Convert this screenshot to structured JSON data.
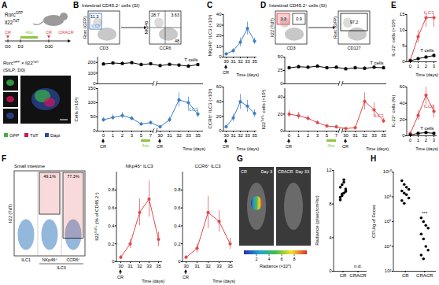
{
  "figure": {
    "A": {
      "letter": "A",
      "strains": [
        [
          "Rorc",
          "GFP"
        ],
        [
          "Il22",
          "TdT"
        ]
      ],
      "timeline": {
        "days": [
          "D0",
          "D3",
          "D30"
        ],
        "treatments": [
          {
            "label": "CR",
            "color": "#e0474c"
          },
          {
            "label": "Abx",
            "color": "#8dc63f"
          },
          {
            "label": "CR",
            "color": "#e0474c"
          }
        ],
        "end": "CRACR"
      },
      "image": {
        "title": [
          "Rorc",
          "GFP",
          " × Il22",
          "TdT"
        ],
        "subtitle": "(SILP; D0)",
        "channels": [
          {
            "name": "GFP",
            "color": "#39b54a"
          },
          {
            "name": "TdT",
            "color": "#d4145a"
          },
          {
            "name": "Dapi",
            "color": "#2b4a9c"
          }
        ]
      }
    },
    "B": {
      "letter": "B",
      "title": [
        "Intestinal CD45.2",
        "+",
        " cells (SI)"
      ],
      "flow": [
        {
          "ylabel": "Rorc (GFP)",
          "xlabel": "CD3",
          "gates": [
            11.3
          ],
          "gate_label": "ILC3",
          "color": "#3b7dbf"
        },
        {
          "ylabel": "NKp46",
          "xlabel": "CCR6",
          "gates": [
            28.7,
            3.63,
            48
          ]
        }
      ]
    },
    "C": {
      "letter": "C"
    },
    "D": {
      "letter": "D",
      "title": [
        "Intestinal CD45.2",
        "+",
        " cells (SI)"
      ],
      "flow": [
        {
          "ylabel": "Il22 (TdT)",
          "xlabel": "CD3",
          "gates": [
            3.3,
            0.9
          ],
          "color": "#e0474c"
        },
        {
          "ylabel": "Rorc (GFP)",
          "xlabel": "CD127",
          "gates": [
            97.2
          ]
        }
      ]
    },
    "E": {
      "letter": "E"
    },
    "F": {
      "letter": "F",
      "flow": {
        "title": "Small intestine",
        "ylabel": "Il22 (TdT)",
        "columns": [
          "ILC1",
          [
            "NKp46",
            "+"
          ],
          [
            "CCR6",
            "+"
          ]
        ],
        "gated": [
          {
            "value": 49.1,
            "label": "49.1%"
          },
          {
            "value": 77.3,
            "label": "77.3%"
          }
        ],
        "group": "ILC3",
        "color": "#e0474c"
      }
    },
    "G": {
      "letter": "G",
      "images": [
        {
          "label": "CR",
          "day": "Day 3"
        },
        {
          "label": "CRACR",
          "day": "Day 33"
        }
      ],
      "colorbar": {
        "label": "Radiance (×10⁶)",
        "range": [
          0,
          10
        ],
        "ticks": [
          2,
          4,
          6,
          8
        ]
      }
    },
    "H": {
      "letter": "H"
    }
  },
  "chart_data": [
    {
      "panel": "B",
      "type": "line",
      "tick_labels": "y",
      "categories": [
        "0",
        "1",
        "2",
        "3",
        "5",
        "7",
        "30",
        "31",
        "32",
        "33",
        "35"
      ],
      "series": [
        {
          "name": "T cells",
          "color": "#000000",
          "marker": "square",
          "values": [
            185,
            195,
            190,
            198,
            180,
            188,
            170,
            182,
            175,
            165,
            180
          ],
          "errors": [
            15,
            12,
            15,
            10,
            14,
            12,
            15,
            12,
            14,
            15,
            12
          ]
        }
      ],
      "ylim": [
        0,
        250
      ],
      "yticks": [
        0,
        100,
        200
      ]
    },
    {
      "panel": "B",
      "type": "line",
      "ylabel": "Cells (×10³)",
      "xlabel": "Time (days)",
      "categories": [
        "0",
        "1",
        "2",
        "3",
        "5",
        "7",
        "30",
        "31",
        "32",
        "33",
        "35"
      ],
      "series": [
        {
          "name": "ILC3",
          "color": "#3b7dbf",
          "marker": "circle",
          "values": [
            40,
            48,
            55,
            45,
            25,
            30,
            15,
            40,
            110,
            100,
            60
          ],
          "errors": [
            8,
            10,
            10,
            8,
            6,
            6,
            5,
            10,
            25,
            20,
            12
          ]
        }
      ],
      "ylim": [
        0,
        150
      ],
      "yticks": [
        0,
        50,
        100,
        150
      ],
      "treatments": [
        {
          "label": "CR",
          "at": "0",
          "color": "#000000"
        },
        {
          "label": "Abx",
          "from": "5",
          "to": "7",
          "color": "#8dc63f"
        },
        {
          "label": "CR",
          "at": "30",
          "color": "#000000"
        }
      ]
    },
    {
      "panel": "C",
      "type": "line",
      "ylabel": [
        "NKp46",
        "+",
        " ILC3 (×10³)"
      ],
      "xlabel": "Time (days)",
      "categories": [
        "30",
        "31",
        "32",
        "33",
        "35"
      ],
      "series": [
        {
          "color": "#3b7dbf",
          "marker": "circle",
          "values": [
            3,
            6,
            14,
            27,
            15
          ],
          "errors": [
            1,
            2,
            4,
            6,
            3
          ]
        }
      ],
      "ylim": [
        0,
        40
      ],
      "yticks": [
        0,
        10,
        20,
        30,
        40
      ],
      "treatments": [
        {
          "label": "CR",
          "at": "30",
          "color": "#000000"
        }
      ]
    },
    {
      "panel": "C",
      "type": "line",
      "ylabel": [
        "CCR6",
        "+",
        " ILC3 (×10³)"
      ],
      "xlabel": "Time (days)",
      "categories": [
        "30",
        "31",
        "32",
        "33",
        "35"
      ],
      "series": [
        {
          "color": "#3b7dbf",
          "marker": "circle",
          "values": [
            6,
            18,
            40,
            34,
            24
          ],
          "errors": [
            2,
            5,
            10,
            8,
            5
          ]
        }
      ],
      "ylim": [
        0,
        60
      ],
      "yticks": [
        0,
        20,
        40,
        60
      ],
      "treatments": [
        {
          "label": "CR",
          "at": "30",
          "color": "#000000"
        }
      ]
    },
    {
      "panel": "D",
      "type": "line",
      "tick_labels": "y",
      "categories": [
        "0",
        "1",
        "2",
        "3",
        "5",
        "7",
        "30",
        "31",
        "32",
        "33",
        "35"
      ],
      "series": [
        {
          "name": "T cells",
          "color": "#000000",
          "marker": "square",
          "values": [
            30,
            32,
            31,
            33,
            30,
            31,
            28,
            30,
            29,
            31,
            30
          ],
          "errors": [
            3,
            3,
            3,
            3,
            3,
            3,
            3,
            3,
            3,
            3,
            3
          ]
        }
      ],
      "ylim": [
        0,
        50
      ],
      "yticks": [
        0,
        25,
        50
      ]
    },
    {
      "panel": "D",
      "type": "line",
      "ylabel": [
        "Il22",
        "TdT+",
        " cells (×10³)"
      ],
      "xlabel": "Time (days)",
      "categories": [
        "0",
        "1",
        "2",
        "3",
        "5",
        "7",
        "30",
        "31",
        "32",
        "33",
        "35"
      ],
      "series": [
        {
          "name": "ILC3",
          "color": "#e0474c",
          "marker": "circle",
          "values": [
            20,
            18,
            15,
            10,
            6,
            5,
            3,
            4,
            35,
            25,
            12
          ],
          "errors": [
            4,
            4,
            3,
            2,
            2,
            2,
            1,
            1,
            10,
            8,
            3
          ]
        }
      ],
      "ylim": [
        0,
        50
      ],
      "yticks": [
        0,
        20,
        40
      ],
      "treatments": [
        {
          "label": "CR",
          "at": "0",
          "color": "#000000"
        },
        {
          "label": "Abx",
          "from": "5",
          "to": "7",
          "color": "#8dc63f"
        },
        {
          "label": "CR",
          "at": "30",
          "color": "#000000"
        }
      ]
    },
    {
      "panel": "E",
      "type": "line",
      "ylabel": [
        "IL-22",
        "+",
        " cells (×10³)"
      ],
      "xlabel": "Time (days)",
      "categories": [
        "0",
        "1",
        "2",
        "3"
      ],
      "series": [
        {
          "name": "ILC3",
          "color": "#e0474c",
          "marker": "circle",
          "values": [
            0.5,
            8,
            14,
            14
          ],
          "errors": [
            0.3,
            2,
            3,
            3
          ]
        },
        {
          "name": "T cells",
          "color": "#000000",
          "marker": "square",
          "values": [
            0.3,
            1,
            1.5,
            2
          ],
          "errors": [
            0.1,
            0.3,
            0.4,
            0.5
          ]
        }
      ],
      "ylim": [
        0,
        15
      ],
      "yticks": [
        0,
        5,
        10,
        15
      ]
    },
    {
      "panel": "E",
      "type": "line",
      "ylabel": [
        "IL-22",
        "+",
        " cells (%)"
      ],
      "xlabel": "Time (days)",
      "categories": [
        "0",
        "1",
        "2",
        "3"
      ],
      "series": [
        {
          "name": "ILC3",
          "color": "#e0474c",
          "marker": "circle",
          "values": [
            3,
            25,
            50,
            30
          ],
          "errors": [
            1,
            6,
            12,
            8
          ]
        },
        {
          "name": "T cells",
          "color": "#000000",
          "marker": "square",
          "values": [
            1,
            3,
            4,
            3
          ],
          "errors": [
            0.5,
            1,
            1,
            1
          ]
        }
      ],
      "ylim": [
        0,
        60
      ],
      "yticks": [
        0,
        20,
        40,
        60
      ]
    },
    {
      "panel": "F",
      "type": "line",
      "title": [
        "NKp46",
        "+",
        " ILC3"
      ],
      "ylabel": [
        "Il22",
        "TdT+",
        " (% of CD45.2",
        "+",
        ")"
      ],
      "xlabel": "Time (days)",
      "categories": [
        "30",
        "31",
        "32",
        "33",
        "35"
      ],
      "series": [
        {
          "color": "#e0474c",
          "marker": "circle",
          "values": [
            0.05,
            0.2,
            0.55,
            0.7,
            0.25
          ],
          "errors": [
            0.02,
            0.05,
            0.15,
            0.2,
            0.08
          ]
        }
      ],
      "ylim": [
        0,
        1
      ],
      "yticks": [
        0,
        0.2,
        0.4,
        0.6,
        0.8
      ],
      "treatments": [
        {
          "label": "CR",
          "at": "30",
          "color": "#000000"
        }
      ]
    },
    {
      "panel": "F",
      "type": "line",
      "title": [
        "CCR6",
        "+",
        " ILC3"
      ],
      "xlabel": "Time (days)",
      "categories": [
        "30",
        "31",
        "32",
        "33",
        "35"
      ],
      "series": [
        {
          "color": "#e0474c",
          "marker": "circle",
          "values": [
            0.05,
            0.15,
            0.55,
            0.45,
            0.2
          ],
          "errors": [
            0.02,
            0.05,
            0.18,
            0.12,
            0.06
          ]
        }
      ],
      "ylim": [
        0,
        1
      ],
      "yticks": [
        0,
        0.2,
        0.4,
        0.6,
        0.8
      ],
      "treatments": [
        {
          "label": "CR",
          "at": "30",
          "color": "#000000"
        }
      ]
    },
    {
      "panel": "G",
      "type": "scatter",
      "ylabel": "Radiance (p/sec/cm²/sr)",
      "categories": [
        "CR",
        "CRACR"
      ],
      "color": "#000000",
      "values": [
        [
          8.5,
          9.0,
          9.3,
          9.6,
          10.0,
          10.3,
          10.6,
          9.8,
          8.8,
          9.2,
          10.9,
          9.5
        ],
        []
      ],
      "ylim": [
        0,
        12
      ],
      "yticks": [
        0,
        4,
        8,
        12
      ],
      "annotations": [
        {
          "category": "CRACR",
          "text": "n.d."
        }
      ]
    },
    {
      "panel": "H",
      "type": "scatter",
      "log": "y",
      "ylabel": "CFU/g of Feces",
      "categories": [
        "CR",
        "CRACR"
      ],
      "color": "#000000",
      "values": [
        [
          2000000000,
          1000000000,
          600000000,
          400000000,
          300000000,
          200000000,
          150000000,
          80000000,
          50000000,
          30000000
        ],
        [
          2000000,
          1000000,
          500000,
          300000,
          100000,
          40000,
          10000,
          5000,
          2000,
          1000
        ]
      ],
      "ylim": [
        100,
        10000000000
      ],
      "yticks": [
        {
          "value": 100,
          "label": "10²"
        },
        {
          "value": 10000,
          "label": "10⁴"
        },
        {
          "value": 1000000,
          "label": "10⁶"
        },
        {
          "value": 100000000,
          "label": "10⁸"
        },
        {
          "value": 10000000000,
          "label": "10¹⁰"
        }
      ],
      "annotations": [
        {
          "category": "CRACR",
          "text": "***"
        }
      ]
    }
  ]
}
